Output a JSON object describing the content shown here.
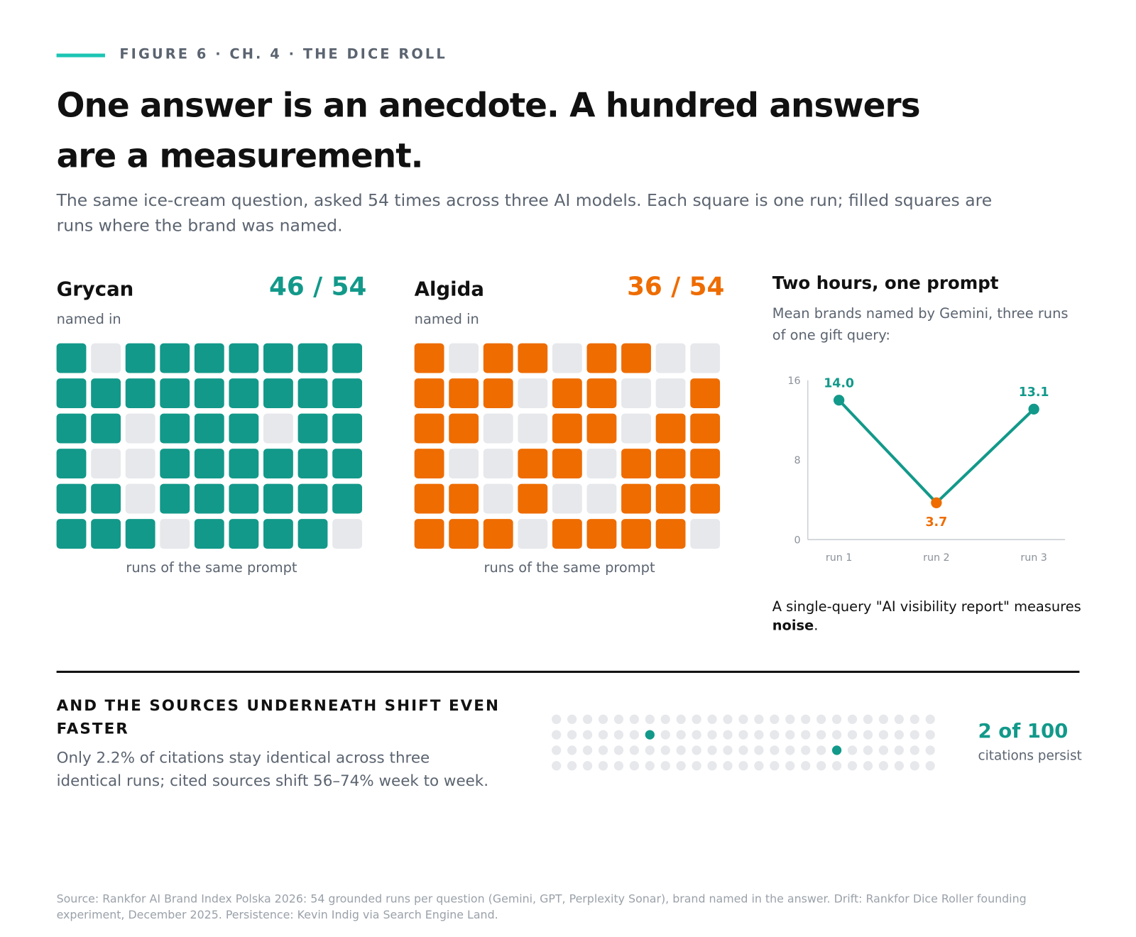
{
  "eyebrow": "FIGURE 6 · CH. 4 · THE DICE ROLL",
  "title": "One answer is an anecdote. A hundred answers are a measurement.",
  "subtitle": "The same ice-cream question, asked 54 times across three AI models. Each square is one run; filled squares are runs where the brand was named.",
  "chart_data": [
    {
      "type": "waffle",
      "title": "Grycan",
      "value_label": "46 / 54",
      "subtitle": "named in",
      "x_label": "runs of the same prompt",
      "color": "#12998a",
      "empty_color": "#e6e8eb",
      "columns": 9,
      "cells": [
        1,
        0,
        1,
        1,
        1,
        1,
        1,
        1,
        1,
        1,
        1,
        1,
        1,
        1,
        1,
        1,
        1,
        1,
        1,
        1,
        0,
        1,
        1,
        1,
        0,
        1,
        1,
        1,
        0,
        0,
        1,
        1,
        1,
        1,
        1,
        1,
        1,
        1,
        0,
        1,
        1,
        1,
        1,
        1,
        1,
        1,
        1,
        1,
        0,
        1,
        1,
        1,
        1,
        0
      ]
    },
    {
      "type": "waffle",
      "title": "Algida",
      "value_label": "36 / 54",
      "subtitle": "named in",
      "x_label": "runs of the same prompt",
      "color": "#ee6c00",
      "empty_color": "#e6e8eb",
      "columns": 9,
      "cells": [
        1,
        0,
        1,
        1,
        0,
        1,
        1,
        0,
        0,
        1,
        1,
        1,
        0,
        1,
        1,
        0,
        0,
        1,
        1,
        1,
        0,
        0,
        1,
        1,
        0,
        1,
        1,
        1,
        0,
        0,
        1,
        1,
        0,
        1,
        1,
        1,
        1,
        1,
        0,
        1,
        0,
        0,
        1,
        1,
        1,
        1,
        1,
        1,
        0,
        1,
        1,
        1,
        1,
        0
      ]
    },
    {
      "type": "line",
      "title": "Two hours, one prompt",
      "subtitle": "Mean brands named by Gemini, three runs of one gift query:",
      "categories": [
        "run 1",
        "run 2",
        "run 3"
      ],
      "values": [
        14.0,
        3.7,
        13.1
      ],
      "value_labels": [
        "14.0",
        "3.7",
        "13.1"
      ],
      "color": "#12998a",
      "point_colors": [
        "#12998a",
        "#ee6c00",
        "#12998a"
      ],
      "label_positions": [
        "above",
        "below",
        "above"
      ],
      "ylim": [
        0,
        16
      ],
      "yticks": [
        0,
        8,
        16
      ],
      "note": {
        "text": "A single-query \"AI visibility report\" measures ",
        "emphasis": "noise",
        "end": "."
      }
    },
    {
      "type": "dot_grid",
      "title": "AND THE SOURCES UNDERNEATH SHIFT EVEN FASTER",
      "text": "Only 2.2% of citations stay identical across three identical runs; cited sources shift 56–74% week to week.",
      "value_label": "2 of 100",
      "caption": "citations persist",
      "color": "#12998a",
      "empty_color": "#e6e8eb",
      "columns": 25,
      "cells": [
        0,
        0,
        0,
        0,
        0,
        0,
        0,
        0,
        0,
        0,
        0,
        0,
        0,
        0,
        0,
        0,
        0,
        0,
        0,
        0,
        0,
        0,
        0,
        0,
        0,
        0,
        0,
        0,
        0,
        0,
        0,
        1,
        0,
        0,
        0,
        0,
        0,
        0,
        0,
        0,
        0,
        0,
        0,
        0,
        0,
        0,
        0,
        0,
        0,
        0,
        0,
        0,
        0,
        0,
        0,
        0,
        0,
        0,
        0,
        0,
        0,
        0,
        0,
        0,
        0,
        0,
        0,
        0,
        1,
        0,
        0,
        0,
        0,
        0,
        0,
        0,
        0,
        0,
        0,
        0,
        0,
        0,
        0,
        0,
        0,
        0,
        0,
        0,
        0,
        0,
        0,
        0,
        0,
        0,
        0,
        0,
        0,
        0,
        0,
        0
      ]
    }
  ],
  "source": "Source: Rankfor AI Brand Index Polska 2026: 54 grounded runs per question (Gemini, GPT, Perplexity Sonar), brand named in the answer. Drift: Rankfor Dice Roller founding experiment, December 2025. Persistence: Kevin Indig via Search Engine Land."
}
